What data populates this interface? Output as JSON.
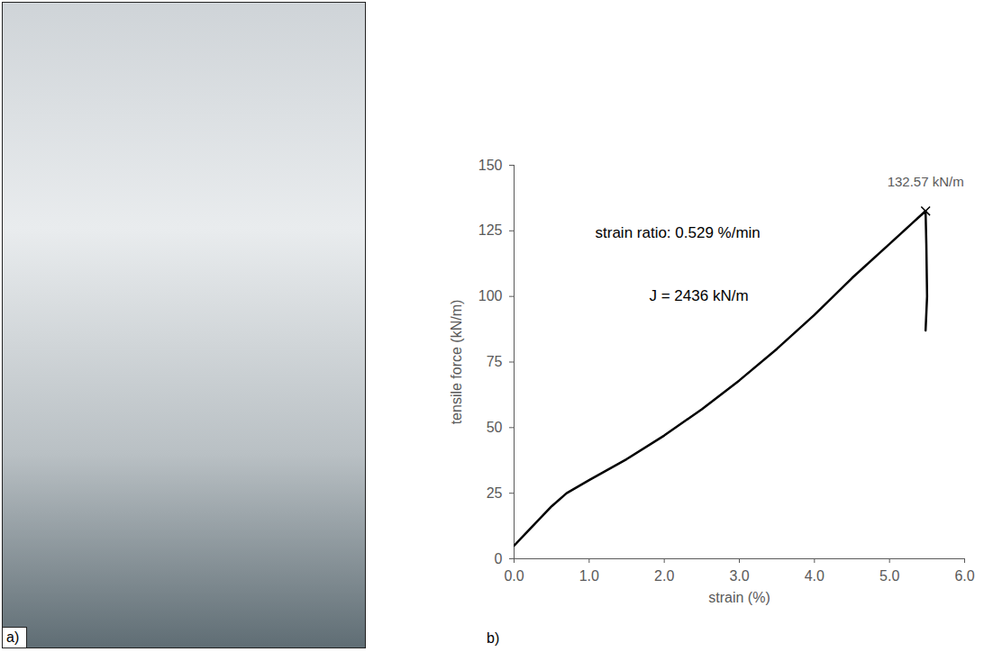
{
  "photo": {
    "panel_label": "a)"
  },
  "chart_data": {
    "type": "line",
    "panel_label": "b)",
    "x_label": "strain (%)",
    "y_label": "tensile force (kN/m)",
    "xlim": [
      0,
      6
    ],
    "ylim": [
      0,
      150
    ],
    "xticks": [
      {
        "value": 0,
        "label": "0.0"
      },
      {
        "value": 1,
        "label": "1.0"
      },
      {
        "value": 2,
        "label": "2.0"
      },
      {
        "value": 3,
        "label": "3.0"
      },
      {
        "value": 4,
        "label": "4.0"
      },
      {
        "value": 5,
        "label": "5.0"
      },
      {
        "value": 6,
        "label": "6.0"
      }
    ],
    "yticks": [
      0,
      25,
      50,
      75,
      100,
      125,
      150
    ],
    "grid": false,
    "series": [
      {
        "name": "tensile force",
        "color": "#000000",
        "x": [
          0.0,
          0.1,
          0.3,
          0.5,
          0.7,
          1.0,
          1.5,
          2.0,
          2.5,
          3.0,
          3.5,
          4.0,
          4.5,
          5.0,
          5.48,
          5.49,
          5.5,
          5.48
        ],
        "values": [
          5,
          8,
          14,
          20,
          25,
          30,
          38,
          47,
          57,
          68,
          80,
          93,
          107,
          120,
          132.57,
          120,
          100,
          87
        ]
      }
    ],
    "peak": {
      "x": 5.48,
      "y": 132.57,
      "label": "132.57 kN/m",
      "marker": "x"
    },
    "annotations": [
      {
        "text": "strain ratio: 0.529 %/min",
        "x": 2.18,
        "y": 124.4
      },
      {
        "text": "J = 2436 kN/m",
        "x": 2.46,
        "y": 100.3
      }
    ]
  }
}
